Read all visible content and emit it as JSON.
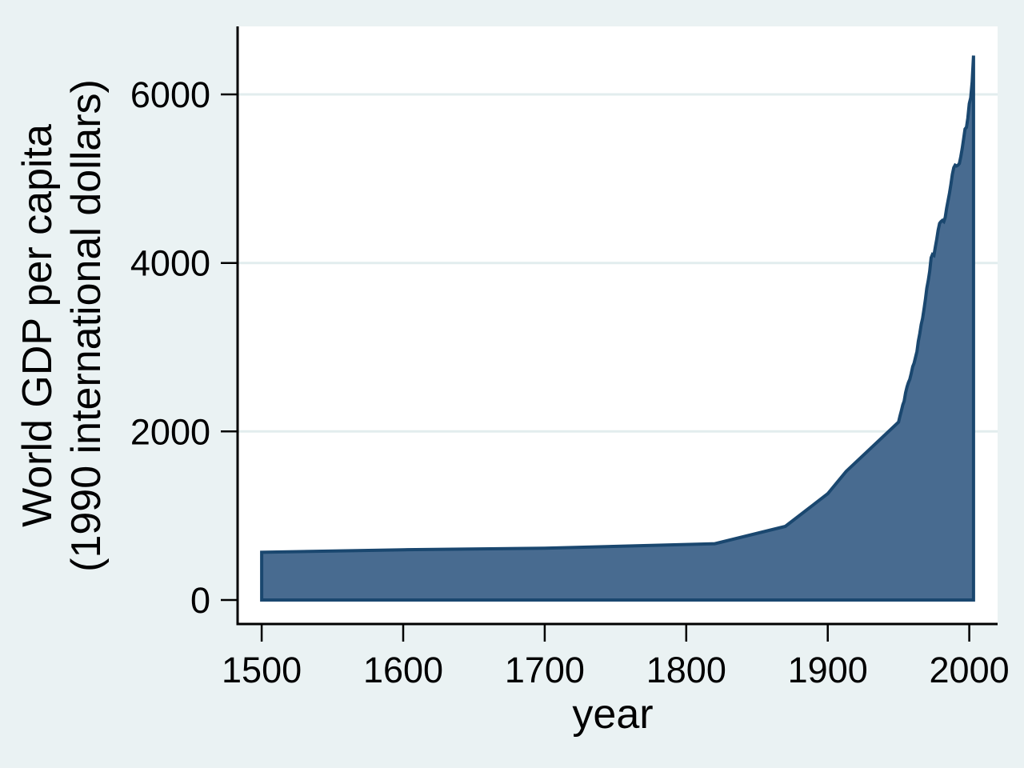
{
  "figure": {
    "background_color": "#eaf2f3",
    "plot_background_color": "#ffffff",
    "grid_color": "#e2edee",
    "axis_color": "#000000",
    "text_color": "#000000"
  },
  "chart_data": {
    "type": "area",
    "title": "",
    "xlabel": "year",
    "ylabel_lines": [
      "World GDP per capita",
      "(1990 international dollars)"
    ],
    "legend": "none",
    "grid": "horizontal",
    "grid_values": [
      2000,
      4000,
      6000
    ],
    "x_axis": {
      "ticks": [
        1500,
        1600,
        1700,
        1800,
        1900,
        2000
      ],
      "range": [
        1483,
        2020
      ]
    },
    "y_axis": {
      "ticks": [
        0,
        2000,
        4000,
        6000
      ],
      "range": [
        -285,
        6807
      ]
    },
    "series": [
      {
        "name": "World GDP per capita (1990 international dollars)",
        "fill_color": "#486b90",
        "stroke_color": "#1a476f",
        "baseline": 0,
        "points": [
          [
            1500,
            566
          ],
          [
            1600,
            596
          ],
          [
            1700,
            615
          ],
          [
            1820,
            667
          ],
          [
            1870,
            873
          ],
          [
            1900,
            1262
          ],
          [
            1913,
            1526
          ],
          [
            1950,
            2111
          ],
          [
            1951,
            2180
          ],
          [
            1952,
            2245
          ],
          [
            1953,
            2315
          ],
          [
            1954,
            2360
          ],
          [
            1955,
            2460
          ],
          [
            1956,
            2530
          ],
          [
            1957,
            2580
          ],
          [
            1958,
            2620
          ],
          [
            1959,
            2690
          ],
          [
            1960,
            2770
          ],
          [
            1961,
            2810
          ],
          [
            1962,
            2880
          ],
          [
            1963,
            2950
          ],
          [
            1964,
            3070
          ],
          [
            1965,
            3160
          ],
          [
            1966,
            3270
          ],
          [
            1967,
            3340
          ],
          [
            1968,
            3450
          ],
          [
            1969,
            3570
          ],
          [
            1970,
            3700
          ],
          [
            1971,
            3790
          ],
          [
            1972,
            3900
          ],
          [
            1973,
            4060
          ],
          [
            1974,
            4100
          ],
          [
            1975,
            4090
          ],
          [
            1976,
            4190
          ],
          [
            1977,
            4280
          ],
          [
            1978,
            4390
          ],
          [
            1979,
            4470
          ],
          [
            1980,
            4490
          ],
          [
            1981,
            4505
          ],
          [
            1982,
            4490
          ],
          [
            1983,
            4540
          ],
          [
            1984,
            4650
          ],
          [
            1985,
            4740
          ],
          [
            1986,
            4830
          ],
          [
            1987,
            4930
          ],
          [
            1988,
            5050
          ],
          [
            1989,
            5130
          ],
          [
            1990,
            5160
          ],
          [
            1991,
            5150
          ],
          [
            1992,
            5160
          ],
          [
            1993,
            5180
          ],
          [
            1994,
            5260
          ],
          [
            1995,
            5360
          ],
          [
            1996,
            5470
          ],
          [
            1997,
            5590
          ],
          [
            1998,
            5610
          ],
          [
            1999,
            5720
          ],
          [
            2000,
            5890
          ],
          [
            2001,
            5960
          ],
          [
            2002,
            6150
          ],
          [
            2003,
            6460
          ]
        ]
      }
    ]
  }
}
